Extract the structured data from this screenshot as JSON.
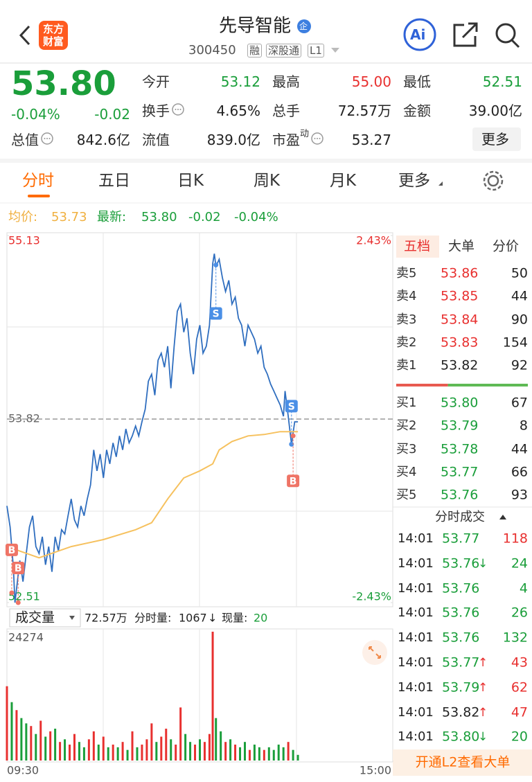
{
  "header": {
    "logo": [
      "东方",
      "财富"
    ],
    "title": "先导智能",
    "badge": "企",
    "code": "300450",
    "tags": [
      "融",
      "深股通",
      "L1"
    ],
    "ai": "Ai"
  },
  "quote": {
    "price": "53.80",
    "change_pct": "-0.04%",
    "change": "-0.02",
    "more": "更多",
    "fields": [
      {
        "label": "今开",
        "value": "53.12",
        "tone": "down"
      },
      {
        "label": "最高",
        "value": "55.00",
        "tone": "up"
      },
      {
        "label": "最低",
        "value": "52.51",
        "tone": "down"
      },
      {
        "label": "换手",
        "value": "4.65%",
        "info": true
      },
      {
        "label": "总手",
        "value": "72.57万"
      },
      {
        "label": "金额",
        "value": "39.00亿"
      },
      {
        "label": "总值",
        "value": "842.6亿",
        "info": true
      },
      {
        "label": "流值",
        "value": "839.0亿"
      },
      {
        "label": "市盈",
        "sup": "动",
        "value": "53.27",
        "info": true
      }
    ]
  },
  "tabs": {
    "items": [
      "分时",
      "五日",
      "日K",
      "周K",
      "月K",
      "更多"
    ],
    "active": 0
  },
  "legend": {
    "avg_label": "均价:",
    "avg": "53.73",
    "last_label": "最新:",
    "last": "53.80",
    "change": "-0.02",
    "change_pct": "-0.04%"
  },
  "chart_data": [
    {
      "type": "line",
      "xlim": [
        0,
        240
      ],
      "ylim": [
        52.51,
        55.13
      ],
      "yticks": [
        55.13,
        53.82,
        52.51
      ],
      "y2lim": [
        -2.43,
        2.43
      ],
      "y2ticks": [
        {
          "value": 2.43,
          "label": "2.43%"
        },
        {
          "value": -2.43,
          "label": "-2.43%"
        }
      ],
      "x": [
        0,
        2,
        4,
        5,
        8,
        10,
        12,
        14,
        16,
        18,
        20,
        22,
        24,
        26,
        28,
        30,
        32,
        34,
        36,
        38,
        40,
        42,
        44,
        46,
        48,
        50,
        52,
        54,
        56,
        58,
        60,
        62,
        64,
        66,
        68,
        70,
        72,
        74,
        76,
        78,
        80,
        82,
        84,
        86,
        88,
        90,
        92,
        94,
        96,
        98,
        100,
        102,
        104,
        106,
        108,
        110,
        112,
        114,
        116,
        118,
        120,
        122,
        124,
        126,
        128,
        129,
        130,
        132,
        134,
        136,
        138,
        140,
        142,
        144,
        146,
        148,
        150,
        152,
        154,
        156,
        158,
        160,
        162,
        164,
        166,
        168,
        170,
        172,
        173,
        175,
        177,
        179,
        181
      ],
      "series": [
        {
          "color": "#2f6ebf",
          "values": [
            53.2,
            53.05,
            52.76,
            52.51,
            52.81,
            52.66,
            52.86,
            53.05,
            53.13,
            52.91,
            52.86,
            52.98,
            52.78,
            52.91,
            52.73,
            52.98,
            52.88,
            53.03,
            53.0,
            53.13,
            53.25,
            53.1,
            53.05,
            53.2,
            53.13,
            53.25,
            53.35,
            53.6,
            53.45,
            53.57,
            53.4,
            53.6,
            53.5,
            53.65,
            53.55,
            53.7,
            53.6,
            53.75,
            53.65,
            53.7,
            53.77,
            53.7,
            53.8,
            53.89,
            54.09,
            54.14,
            53.99,
            54.24,
            54.29,
            54.19,
            54.34,
            54.04,
            54.34,
            54.59,
            54.64,
            54.44,
            54.54,
            54.29,
            54.14,
            54.39,
            54.49,
            54.29,
            54.34,
            54.49,
            54.93,
            55.0,
            54.91,
            54.96,
            54.83,
            54.73,
            54.81,
            54.64,
            54.69,
            54.54,
            54.49,
            54.34,
            54.49,
            54.44,
            54.39,
            54.29,
            54.34,
            54.19,
            54.14,
            54.07,
            54.02,
            53.97,
            53.92,
            53.84,
            54.02,
            53.84,
            53.64,
            53.8,
            53.8
          ]
        },
        {
          "color": "#f6c15e",
          "x": [
            0,
            20,
            40,
            60,
            80,
            90,
            100,
            110,
            120,
            128,
            132,
            140,
            150,
            160,
            170,
            181
          ],
          "values": [
            52.91,
            52.83,
            52.91,
            52.96,
            53.03,
            53.08,
            53.25,
            53.4,
            53.45,
            53.5,
            53.6,
            53.66,
            53.7,
            53.71,
            53.73,
            53.73
          ]
        }
      ],
      "annotations": [
        {
          "text": "B",
          "x": 3,
          "y": 52.58
        },
        {
          "text": "B",
          "x": 7,
          "y": 52.51
        },
        {
          "text": "S",
          "x": 130,
          "y": 54.92
        },
        {
          "text": "S",
          "x": 177,
          "y": 53.64
        },
        {
          "text": "B",
          "x": 178,
          "y": 53.7
        }
      ]
    },
    {
      "type": "bar",
      "xlim": [
        0,
        240
      ],
      "xticks": [
        {
          "value": 0,
          "label": "09:30"
        },
        {
          "value": 240,
          "label": "15:00"
        }
      ],
      "ylim": [
        0,
        24274
      ],
      "yticks": [
        24274
      ],
      "up_color": "#e8302f",
      "down_color": "#1a9e3a",
      "x": [
        0,
        3,
        6,
        9,
        12,
        15,
        18,
        21,
        24,
        27,
        30,
        33,
        36,
        39,
        42,
        45,
        48,
        51,
        54,
        57,
        60,
        63,
        66,
        69,
        72,
        75,
        78,
        81,
        84,
        87,
        90,
        93,
        96,
        99,
        102,
        105,
        108,
        111,
        114,
        117,
        120,
        123,
        126,
        128,
        130,
        133,
        136,
        139,
        142,
        145,
        148,
        151,
        154,
        157,
        160,
        163,
        166,
        169,
        172,
        175,
        178,
        181
      ],
      "values": [
        14000,
        11000,
        9500,
        8000,
        7000,
        6500,
        5000,
        7500,
        4500,
        5500,
        6000,
        3500,
        4000,
        3000,
        5000,
        3500,
        2500,
        4000,
        5500,
        3000,
        4500,
        2500,
        3000,
        2500,
        3500,
        2000,
        5500,
        2500,
        3000,
        4000,
        7000,
        3500,
        4500,
        6000,
        4000,
        3000,
        10000,
        5000,
        3500,
        3000,
        4000,
        3500,
        5000,
        24274,
        8000,
        5500,
        3500,
        4000,
        3000,
        2500,
        3500,
        2000,
        3000,
        2500,
        2000,
        2500,
        2000,
        3000,
        2500,
        3500,
        2000,
        1067
      ],
      "directions": [
        "up",
        "down",
        "up",
        "down",
        "down",
        "up",
        "down",
        "up",
        "down",
        "up",
        "down",
        "up",
        "down",
        "up",
        "up",
        "down",
        "down",
        "up",
        "up",
        "down",
        "up",
        "down",
        "up",
        "down",
        "up",
        "down",
        "up",
        "down",
        "up",
        "up",
        "up",
        "down",
        "up",
        "up",
        "down",
        "up",
        "up",
        "down",
        "down",
        "up",
        "down",
        "up",
        "up",
        "up",
        "down",
        "down",
        "up",
        "down",
        "up",
        "down",
        "down",
        "up",
        "down",
        "down",
        "up",
        "down",
        "down",
        "down",
        "down",
        "up",
        "down",
        "down"
      ]
    }
  ],
  "volume_header": {
    "selector": "成交量",
    "total": "72.57万",
    "minute_label": "分时量:",
    "minute": "1067",
    "arrow": "↓",
    "current_label": "现量:",
    "current": "20"
  },
  "order_book": {
    "tabs": [
      "五档",
      "大单",
      "分价"
    ],
    "active": 0,
    "asks": [
      {
        "label": "卖5",
        "price": "53.86",
        "volume": "50"
      },
      {
        "label": "卖4",
        "price": "53.85",
        "volume": "44"
      },
      {
        "label": "卖3",
        "price": "53.84",
        "volume": "90"
      },
      {
        "label": "卖2",
        "price": "53.83",
        "volume": "154"
      },
      {
        "label": "卖1",
        "price": "53.82",
        "volume": "92"
      }
    ],
    "bids": [
      {
        "label": "买1",
        "price": "53.80",
        "volume": "67"
      },
      {
        "label": "买2",
        "price": "53.79",
        "volume": "8"
      },
      {
        "label": "买3",
        "price": "53.78",
        "volume": "44"
      },
      {
        "label": "买4",
        "price": "53.77",
        "volume": "66"
      },
      {
        "label": "买5",
        "price": "53.76",
        "volume": "93"
      }
    ]
  },
  "trades": {
    "title": "分时成交",
    "rows": [
      {
        "time": "14:01",
        "price": "53.77",
        "arrow": "",
        "volume": "118",
        "side": "up"
      },
      {
        "time": "14:01",
        "price": "53.76",
        "arrow": "↓",
        "volume": "24",
        "side": "down"
      },
      {
        "time": "14:01",
        "price": "53.76",
        "arrow": "",
        "volume": "4",
        "side": "down"
      },
      {
        "time": "14:01",
        "price": "53.76",
        "arrow": "",
        "volume": "26",
        "side": "down"
      },
      {
        "time": "14:01",
        "price": "53.76",
        "arrow": "",
        "volume": "132",
        "side": "down"
      },
      {
        "time": "14:01",
        "price": "53.77",
        "arrow": "↑",
        "volume": "43",
        "side": "up"
      },
      {
        "time": "14:01",
        "price": "53.79",
        "arrow": "↑",
        "volume": "62",
        "side": "up"
      },
      {
        "time": "14:01",
        "price": "53.82",
        "arrow": "↑",
        "volume": "47",
        "side": "up"
      },
      {
        "time": "14:01",
        "price": "53.80",
        "arrow": "↓",
        "volume": "20",
        "side": "down"
      }
    ]
  },
  "l2_banner": "开通L2查看大单"
}
